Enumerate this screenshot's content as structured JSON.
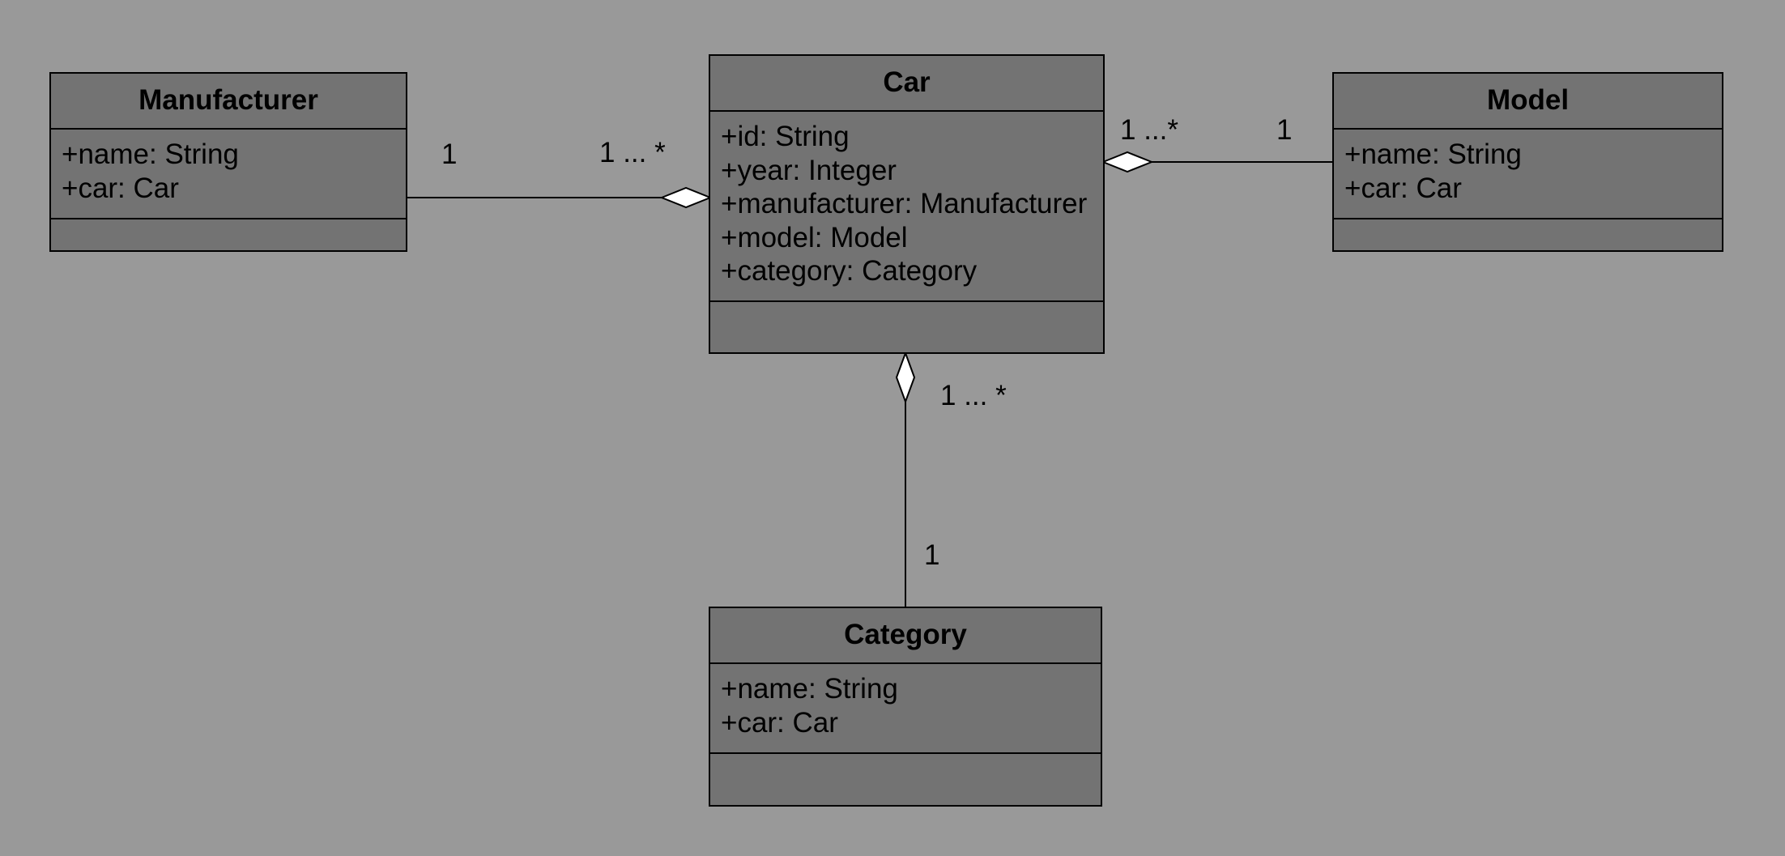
{
  "classes": {
    "manufacturer": {
      "name": "Manufacturer",
      "attributes": [
        "+name: String",
        "+car: Car"
      ]
    },
    "car": {
      "name": "Car",
      "attributes": [
        "+id: String",
        "+year: Integer",
        "+manufacturer: Manufacturer",
        "+model: Model",
        "+category: Category"
      ]
    },
    "model": {
      "name": "Model",
      "attributes": [
        "+name: String",
        "+car: Car"
      ]
    },
    "category": {
      "name": "Category",
      "attributes": [
        "+name: String",
        "+car: Car"
      ]
    }
  },
  "associations": {
    "manufacturer_car": {
      "source_multiplicity": "1",
      "target_multiplicity": "1 ... *",
      "type": "aggregation"
    },
    "model_car": {
      "source_multiplicity": "1",
      "target_multiplicity": "1 ...*",
      "type": "aggregation"
    },
    "category_car": {
      "source_multiplicity": "1",
      "target_multiplicity": "1 ... *",
      "type": "aggregation"
    }
  },
  "colors": {
    "background": "#999999",
    "class_fill": "#737373",
    "line": "#000000",
    "diamond_fill": "#ffffff"
  }
}
